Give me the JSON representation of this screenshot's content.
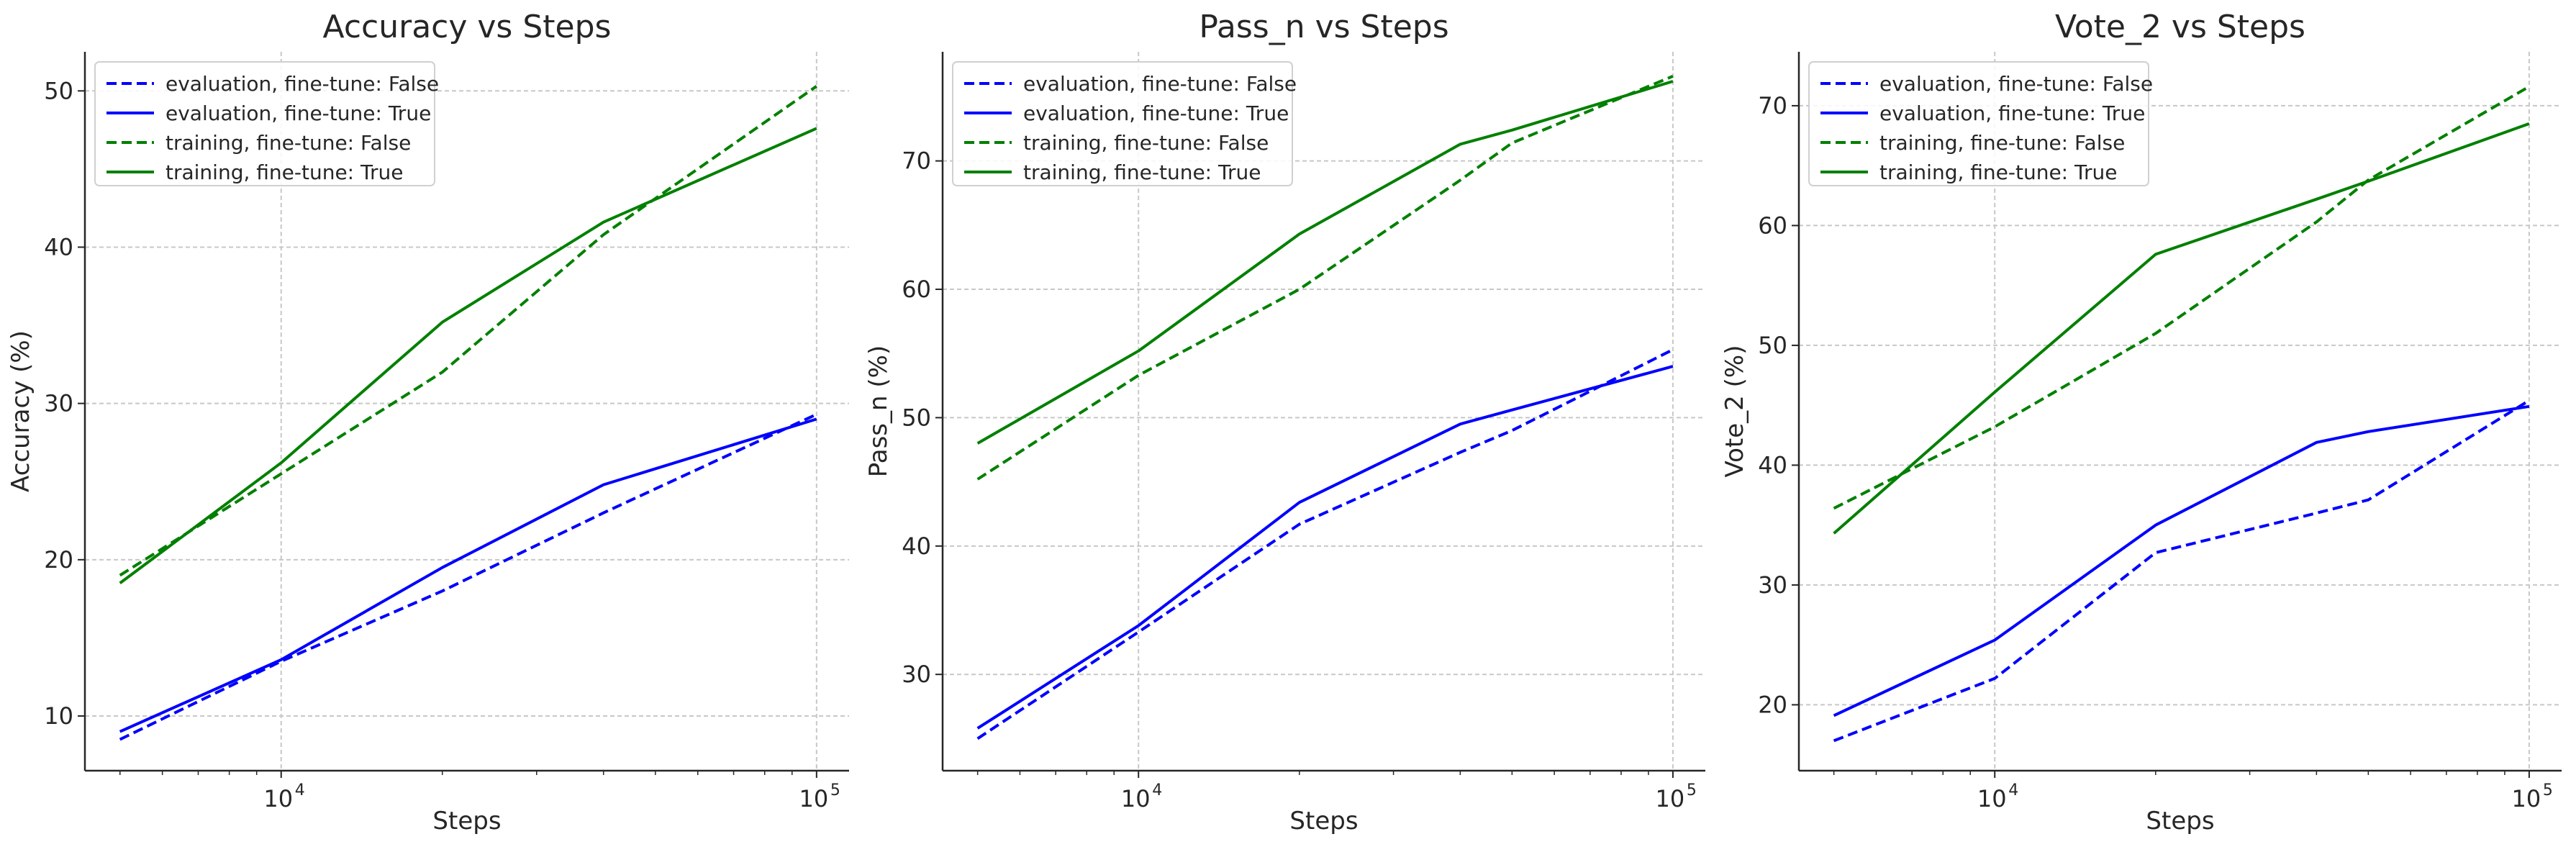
{
  "chart_data": [
    {
      "type": "line",
      "title": "Accuracy vs Steps",
      "xlabel": "Steps",
      "ylabel": "Accuracy (%)",
      "xscale": "log",
      "xlim": [
        4300,
        115000
      ],
      "ylim": [
        6.5,
        52.5
      ],
      "yticks": [
        10,
        20,
        30,
        40,
        50
      ],
      "xticks": [
        10000,
        100000
      ],
      "xtick_labels": [
        {
          "base": "10",
          "exp": "4"
        },
        {
          "base": "10",
          "exp": "5"
        }
      ],
      "grid": true,
      "legend_position": "top-left",
      "x": [
        5000,
        10000,
        20000,
        40000,
        100000
      ],
      "series": [
        {
          "name": "evaluation, fine-tune: False",
          "color": "#0000ff",
          "dash": "dashed",
          "values": [
            8.5,
            13.5,
            18.0,
            23.0,
            29.3
          ]
        },
        {
          "name": "evaluation, fine-tune: True",
          "color": "#0000ff",
          "dash": "solid",
          "values": [
            9.0,
            13.6,
            19.5,
            24.8,
            29.0
          ]
        },
        {
          "name": "training, fine-tune: False",
          "color": "#008000",
          "dash": "dashed",
          "values": [
            19.0,
            25.5,
            32.0,
            40.8,
            50.3
          ]
        },
        {
          "name": "training, fine-tune: True",
          "color": "#008000",
          "dash": "solid",
          "values": [
            18.5,
            26.2,
            35.2,
            41.6,
            47.6
          ]
        }
      ]
    },
    {
      "type": "line",
      "title": "Pass_n vs Steps",
      "xlabel": "Steps",
      "ylabel": "Pass_n (%)",
      "xscale": "log",
      "xlim": [
        4300,
        115000
      ],
      "ylim": [
        22.5,
        78.5
      ],
      "yticks": [
        30,
        40,
        50,
        60,
        70
      ],
      "xticks": [
        10000,
        100000
      ],
      "xtick_labels": [
        {
          "base": "10",
          "exp": "4"
        },
        {
          "base": "10",
          "exp": "5"
        }
      ],
      "grid": true,
      "legend_position": "top-left",
      "x": [
        5000,
        10000,
        20000,
        40000,
        50000,
        100000
      ],
      "series": [
        {
          "name": "evaluation, fine-tune: False",
          "color": "#0000ff",
          "dash": "dashed",
          "values": [
            25.0,
            33.3,
            41.7,
            47.3,
            49.0,
            55.3
          ]
        },
        {
          "name": "evaluation, fine-tune: True",
          "color": "#0000ff",
          "dash": "solid",
          "values": [
            25.8,
            33.8,
            43.4,
            49.5,
            50.6,
            54.0
          ]
        },
        {
          "name": "training, fine-tune: False",
          "color": "#008000",
          "dash": "dashed",
          "values": [
            45.2,
            53.3,
            60.0,
            68.5,
            71.4,
            76.6
          ]
        },
        {
          "name": "training, fine-tune: True",
          "color": "#008000",
          "dash": "solid",
          "values": [
            48.0,
            55.2,
            64.3,
            71.3,
            72.4,
            76.2
          ]
        }
      ]
    },
    {
      "type": "line",
      "title": "Vote_2 vs Steps",
      "xlabel": "Steps",
      "ylabel": "Vote_2 (%)",
      "xscale": "log",
      "xlim": [
        4300,
        115000
      ],
      "ylim": [
        14.5,
        74.5
      ],
      "yticks": [
        20,
        30,
        40,
        50,
        60,
        70
      ],
      "xticks": [
        10000,
        100000
      ],
      "xtick_labels": [
        {
          "base": "10",
          "exp": "4"
        },
        {
          "base": "10",
          "exp": "5"
        }
      ],
      "grid": true,
      "legend_position": "top-left",
      "x": [
        5000,
        10000,
        20000,
        40000,
        50000,
        100000
      ],
      "series": [
        {
          "name": "evaluation, fine-tune: False",
          "color": "#0000ff",
          "dash": "dashed",
          "values": [
            17.0,
            22.2,
            32.7,
            36.0,
            37.1,
            45.4
          ]
        },
        {
          "name": "evaluation, fine-tune: True",
          "color": "#0000ff",
          "dash": "solid",
          "values": [
            19.1,
            25.4,
            35.0,
            41.9,
            42.8,
            44.9
          ]
        },
        {
          "name": "training, fine-tune: False",
          "color": "#008000",
          "dash": "dashed",
          "values": [
            36.4,
            43.2,
            51.0,
            60.3,
            63.8,
            71.6
          ]
        },
        {
          "name": "training, fine-tune: True",
          "color": "#008000",
          "dash": "solid",
          "values": [
            34.3,
            46.1,
            57.6,
            62.2,
            63.7,
            68.5
          ]
        }
      ]
    }
  ]
}
